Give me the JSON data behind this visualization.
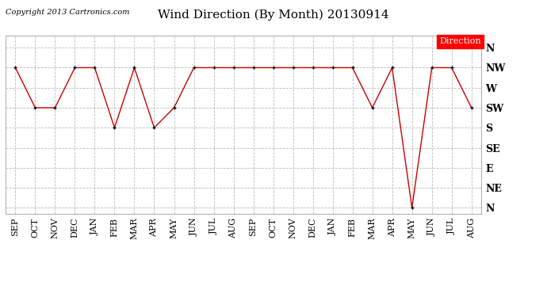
{
  "title": "Wind Direction (By Month) 20130914",
  "copyright_text": "Copyright 2013 Cartronics.com",
  "legend_label": "Direction",
  "legend_bg": "#ff0000",
  "legend_fg": "#ffffff",
  "x_labels": [
    "SEP",
    "OCT",
    "NOV",
    "DEC",
    "JAN",
    "FEB",
    "MAR",
    "APR",
    "MAY",
    "JUN",
    "JUL",
    "AUG",
    "SEP",
    "OCT",
    "NOV",
    "DEC",
    "JAN",
    "FEB",
    "MAR",
    "APR",
    "MAY",
    "JUN",
    "JUL",
    "AUG"
  ],
  "y_labels": [
    "N",
    "NW",
    "W",
    "SW",
    "S",
    "SE",
    "E",
    "NE",
    "N"
  ],
  "y_values": [
    8,
    7,
    6,
    5,
    4,
    3,
    2,
    1,
    0
  ],
  "data_values": [
    7,
    5,
    5,
    7,
    7,
    4,
    7,
    4,
    5,
    7,
    7,
    7,
    7,
    7,
    7,
    7,
    7,
    7,
    5,
    7,
    0,
    7,
    7,
    5
  ],
  "line_color": "#cc0000",
  "marker_color": "#000000",
  "bg_color": "#ffffff",
  "plot_bg_color": "#ffffff",
  "grid_color": "#bbbbbb",
  "title_fontsize": 11,
  "copyright_fontsize": 7,
  "axis_fontsize": 8
}
